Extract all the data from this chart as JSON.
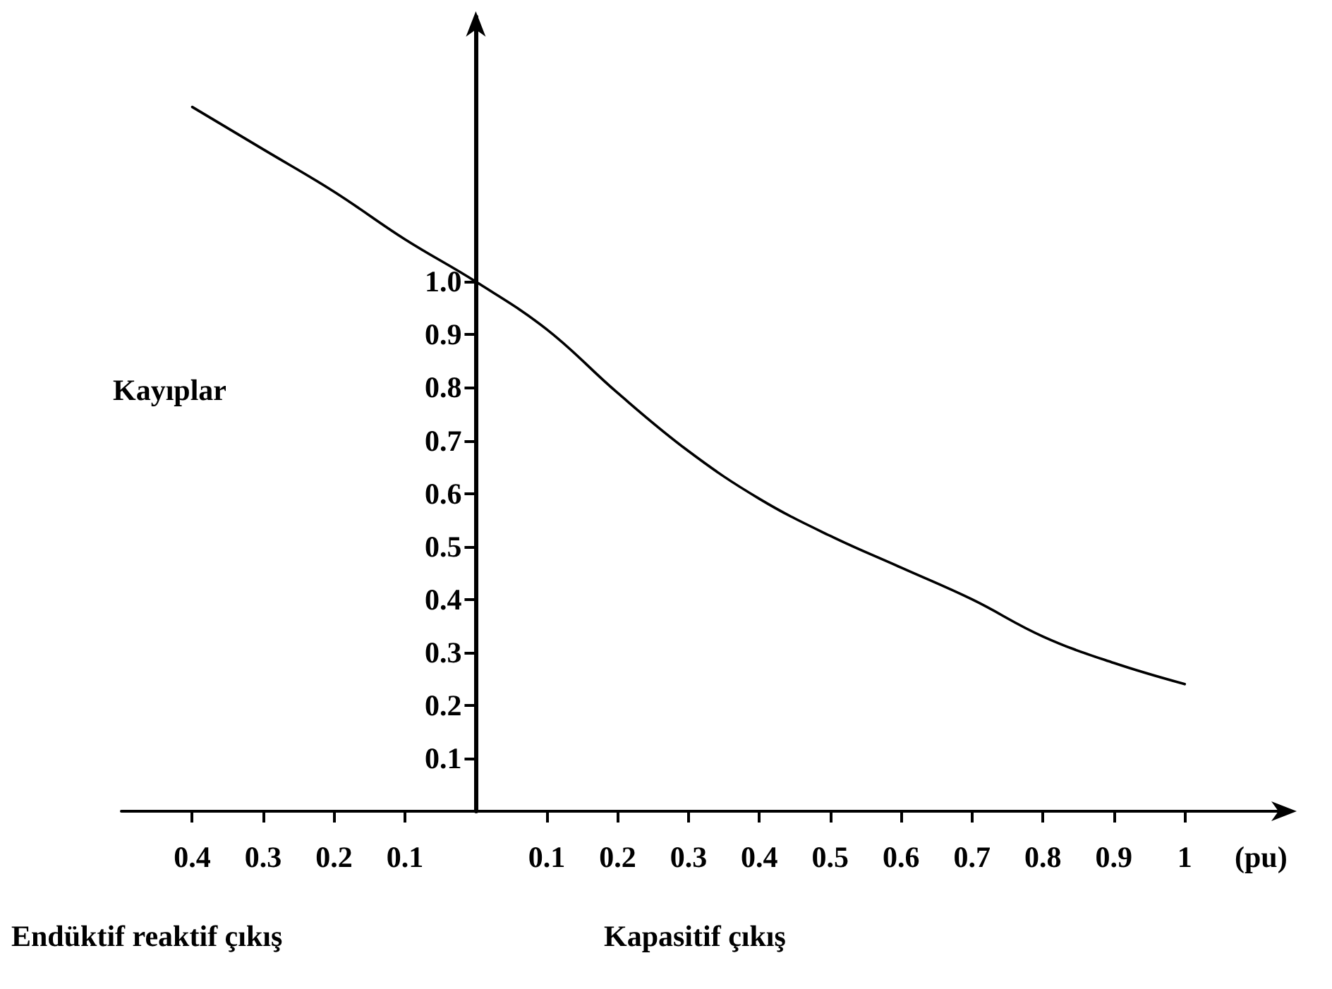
{
  "chart_data": {
    "type": "line",
    "xlabel": "(pu)",
    "ylabel": "Kayıplar",
    "annotations": [
      "Endüktif reaktif çıkış",
      "Kapasitif çıkış"
    ],
    "x": [
      -0.4,
      -0.3,
      -0.2,
      -0.1,
      0,
      0.1,
      0.2,
      0.3,
      0.4,
      0.5,
      0.6,
      0.7,
      0.8,
      0.9,
      1.0
    ],
    "series": [
      {
        "color": "#000000",
        "values": [
          1.33,
          1.25,
          1.17,
          1.08,
          1.0,
          0.91,
          0.79,
          0.68,
          0.59,
          0.52,
          0.46,
          0.4,
          0.33,
          0.28,
          0.24
        ]
      }
    ],
    "xlim": [
      -0.5,
      1.15
    ],
    "ylim": [
      0,
      1.5
    ],
    "xticks": [
      {
        "value": -0.4,
        "label": "0.4"
      },
      {
        "value": -0.3,
        "label": "0.3"
      },
      {
        "value": -0.2,
        "label": "0.2"
      },
      {
        "value": -0.1,
        "label": "0.1"
      },
      0.1,
      0.2,
      0.3,
      0.4,
      0.5,
      0.6,
      0.7,
      0.8,
      0.9,
      1
    ],
    "yticks": [
      0.1,
      0.2,
      0.3,
      0.4,
      0.5,
      0.6,
      0.7,
      0.8,
      0.9,
      {
        "value": 1,
        "label": "1.0"
      }
    ],
    "marker": "none",
    "line_style": "solid"
  }
}
